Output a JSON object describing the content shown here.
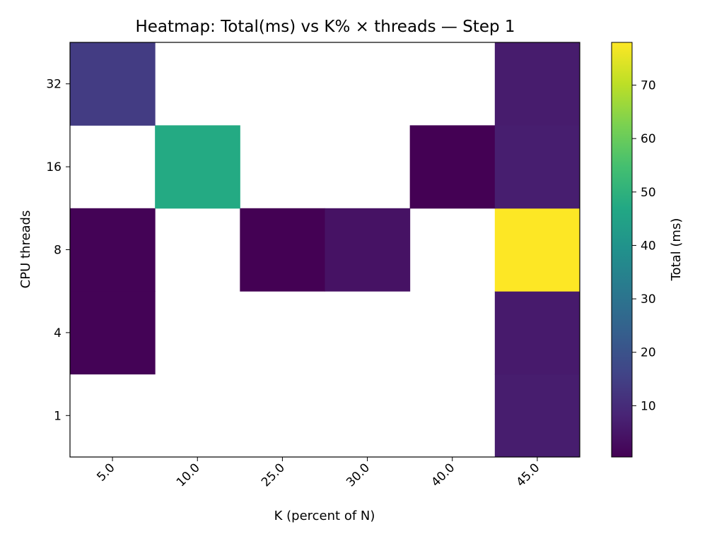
{
  "chart_data": {
    "type": "heatmap",
    "title": "Heatmap: Total(ms) vs K% × threads — Step 1",
    "xlabel": "K (percent of N)",
    "ylabel": "CPU threads",
    "x_categories": [
      "5.0",
      "10.0",
      "25.0",
      "30.0",
      "40.0",
      "45.0"
    ],
    "y_categories": [
      "1",
      "4",
      "8",
      "16",
      "32"
    ],
    "values": [
      [
        null,
        null,
        null,
        null,
        null,
        6.5
      ],
      [
        0.8,
        null,
        null,
        null,
        null,
        6.0
      ],
      [
        0.9,
        null,
        0.5,
        4.2,
        null,
        78.0
      ],
      [
        null,
        47.5,
        null,
        null,
        0.4,
        6.8
      ],
      [
        14.0,
        null,
        null,
        null,
        null,
        6.3
      ]
    ],
    "colorbar": {
      "label": "Total (ms)",
      "min": 0.4,
      "max": 78.0,
      "ticks": [
        10,
        20,
        30,
        40,
        50,
        60,
        70
      ],
      "colormap": "viridis"
    },
    "grid": false
  }
}
